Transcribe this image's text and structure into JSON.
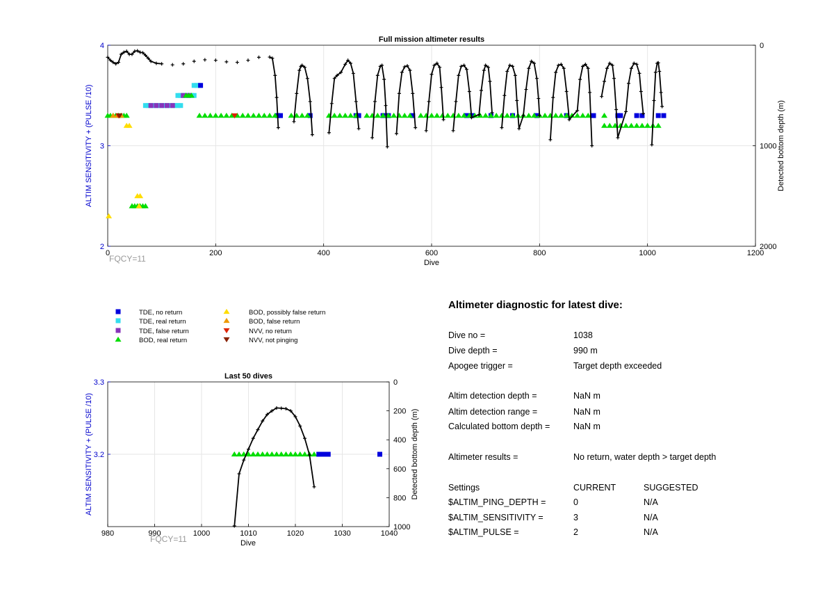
{
  "chart_data": [
    {
      "type": "scatter",
      "title": "Full mission altimeter results",
      "xlabel": "Dive",
      "ylabel_left": "ALTIM SENSITIVITY + (PULSE /10)",
      "ylabel_right": "Detected bottom depth (m)",
      "xlim": [
        0,
        1200
      ],
      "ylim_left": [
        2,
        4
      ],
      "ylim_right": [
        0,
        2000
      ],
      "right_axis_reversed": true,
      "xticks": [
        "0",
        "200",
        "400",
        "600",
        "800",
        "1000",
        "1200"
      ],
      "yticks_left": [
        "2",
        "3",
        "4"
      ],
      "yticks_right": [
        "0",
        "1000",
        "2000"
      ],
      "grid": true,
      "annotation": "FQCY=11",
      "depth_profile": [
        [
          0,
          120
        ],
        [
          5,
          150
        ],
        [
          10,
          170
        ],
        [
          15,
          185
        ],
        [
          20,
          170
        ],
        [
          25,
          90
        ],
        [
          30,
          70
        ],
        [
          35,
          60
        ],
        [
          40,
          90
        ],
        [
          45,
          90
        ],
        [
          50,
          60
        ],
        [
          55,
          55
        ],
        [
          60,
          70
        ],
        [
          65,
          75
        ],
        [
          70,
          100
        ],
        [
          75,
          130
        ],
        [
          80,
          160
        ],
        [
          90,
          180
        ],
        [
          100,
          185
        ],
        [
          120,
          195
        ],
        [
          140,
          185
        ],
        [
          160,
          160
        ],
        [
          180,
          145
        ],
        [
          200,
          150
        ],
        [
          220,
          165
        ],
        [
          240,
          170
        ],
        [
          260,
          150
        ],
        [
          280,
          120
        ],
        [
          300,
          118
        ],
        [
          305,
          130
        ],
        [
          310,
          300
        ],
        [
          313,
          520
        ],
        [
          316,
          820
        ],
        [
          345,
          760
        ],
        [
          350,
          480
        ],
        [
          355,
          250
        ],
        [
          358,
          210
        ],
        [
          360,
          200
        ],
        [
          365,
          220
        ],
        [
          370,
          330
        ],
        [
          375,
          560
        ],
        [
          379,
          890
        ],
        [
          410,
          870
        ],
        [
          415,
          580
        ],
        [
          420,
          330
        ],
        [
          425,
          300
        ],
        [
          432,
          270
        ],
        [
          440,
          190
        ],
        [
          445,
          150
        ],
        [
          450,
          180
        ],
        [
          455,
          280
        ],
        [
          460,
          560
        ],
        [
          465,
          830
        ],
        [
          490,
          920
        ],
        [
          495,
          560
        ],
        [
          500,
          300
        ],
        [
          505,
          210
        ],
        [
          508,
          200
        ],
        [
          512,
          340
        ],
        [
          515,
          600
        ],
        [
          518,
          1010
        ],
        [
          535,
          880
        ],
        [
          540,
          480
        ],
        [
          545,
          270
        ],
        [
          550,
          215
        ],
        [
          555,
          205
        ],
        [
          560,
          250
        ],
        [
          565,
          480
        ],
        [
          570,
          820
        ],
        [
          590,
          850
        ],
        [
          595,
          560
        ],
        [
          600,
          290
        ],
        [
          605,
          200
        ],
        [
          610,
          180
        ],
        [
          615,
          220
        ],
        [
          618,
          420
        ],
        [
          622,
          740
        ],
        [
          640,
          850
        ],
        [
          645,
          560
        ],
        [
          650,
          300
        ],
        [
          655,
          210
        ],
        [
          660,
          200
        ],
        [
          665,
          240
        ],
        [
          670,
          460
        ],
        [
          674,
          720
        ],
        [
          688,
          690
        ],
        [
          692,
          450
        ],
        [
          697,
          250
        ],
        [
          700,
          200
        ],
        [
          705,
          220
        ],
        [
          708,
          360
        ],
        [
          712,
          670
        ],
        [
          730,
          820
        ],
        [
          735,
          500
        ],
        [
          740,
          260
        ],
        [
          745,
          200
        ],
        [
          750,
          210
        ],
        [
          755,
          300
        ],
        [
          758,
          550
        ],
        [
          762,
          830
        ],
        [
          770,
          700
        ],
        [
          775,
          440
        ],
        [
          780,
          230
        ],
        [
          785,
          160
        ],
        [
          790,
          180
        ],
        [
          795,
          330
        ],
        [
          798,
          530
        ],
        [
          800,
          700
        ],
        [
          820,
          940
        ],
        [
          825,
          520
        ],
        [
          830,
          270
        ],
        [
          835,
          200
        ],
        [
          840,
          190
        ],
        [
          845,
          230
        ],
        [
          850,
          460
        ],
        [
          855,
          740
        ],
        [
          870,
          650
        ],
        [
          875,
          340
        ],
        [
          880,
          210
        ],
        [
          885,
          190
        ],
        [
          890,
          230
        ],
        [
          893,
          470
        ],
        [
          897,
          1000
        ],
        [
          915,
          510
        ],
        [
          920,
          360
        ],
        [
          925,
          230
        ],
        [
          930,
          180
        ],
        [
          935,
          200
        ],
        [
          938,
          330
        ],
        [
          942,
          640
        ],
        [
          945,
          920
        ],
        [
          960,
          660
        ],
        [
          965,
          380
        ],
        [
          970,
          230
        ],
        [
          975,
          180
        ],
        [
          980,
          190
        ],
        [
          985,
          280
        ],
        [
          988,
          460
        ],
        [
          992,
          680
        ],
        [
          1008,
          990
        ],
        [
          1012,
          550
        ],
        [
          1015,
          270
        ],
        [
          1018,
          180
        ],
        [
          1020,
          175
        ],
        [
          1022,
          260
        ],
        [
          1025,
          470
        ],
        [
          1027,
          610
        ]
      ],
      "markers": [
        {
          "type": "tde_no_return",
          "y": 3.3,
          "x": [
            315,
            320,
            375,
            460,
            465,
            510,
            520,
            565,
            665,
            675,
            710,
            750,
            795,
            850,
            900,
            945,
            950,
            980,
            990,
            1020,
            1030
          ]
        },
        {
          "type": "tde_real_return",
          "y": 3.4,
          "x": [
            70,
            75,
            80,
            85,
            90,
            95,
            100,
            105,
            110,
            115,
            120,
            125,
            130,
            135
          ]
        },
        {
          "type": "tde_real_return",
          "y": 3.5,
          "x": [
            130,
            135,
            140,
            145,
            150,
            155,
            160
          ]
        },
        {
          "type": "tde_real_return",
          "y": 3.6,
          "x": [
            160,
            165,
            170
          ]
        },
        {
          "type": "tde_no_return",
          "y": 3.6,
          "x": [
            172
          ]
        },
        {
          "type": "tde_false_return",
          "y": 3.4,
          "x": [
            80,
            90,
            100,
            110,
            120
          ]
        },
        {
          "type": "tde_false_return",
          "y": 3.5,
          "x": [
            140,
            150
          ]
        },
        {
          "type": "bod_real_return",
          "y": 3.3,
          "x": [
            0,
            5,
            10,
            15,
            20,
            25,
            30,
            35,
            170,
            180,
            190,
            200,
            210,
            220,
            230,
            240,
            250,
            260,
            270,
            280,
            290,
            300,
            310,
            340,
            350,
            360,
            370,
            410,
            420,
            430,
            440,
            450,
            460,
            480,
            490,
            500,
            510,
            520,
            530,
            540,
            550,
            560,
            580,
            590,
            600,
            610,
            620,
            630,
            640,
            650,
            660,
            670,
            680,
            690,
            700,
            710,
            720,
            730,
            740,
            750,
            760,
            770,
            780,
            790,
            800,
            810,
            820,
            830,
            840,
            850,
            860,
            870,
            880,
            890,
            920
          ]
        },
        {
          "type": "bod_real_return",
          "y": 3.2,
          "x": [
            920,
            930,
            940,
            950,
            960,
            970,
            980,
            990,
            1000,
            1010,
            1020
          ]
        },
        {
          "type": "bod_real_return",
          "y": 3.5,
          "x": [
            145,
            150,
            155
          ]
        },
        {
          "type": "bod_real_return",
          "y": 2.4,
          "x": [
            45,
            50,
            55,
            60,
            65,
            70
          ]
        },
        {
          "type": "bod_possibly_false_return",
          "y": 2.3,
          "x": [
            2
          ]
        },
        {
          "type": "bod_possibly_false_return",
          "y": 3.2,
          "x": [
            35,
            40
          ]
        },
        {
          "type": "bod_possibly_false_return",
          "y": 2.5,
          "x": [
            55,
            60
          ]
        },
        {
          "type": "bod_possibly_false_return",
          "y": 2.4,
          "x": [
            58
          ]
        },
        {
          "type": "bod_false_return",
          "y": 3.3,
          "x": [
            10,
            18,
            25
          ]
        },
        {
          "type": "nvv_no_return",
          "y": 3.3,
          "x": [
            20,
            235
          ]
        },
        {
          "type": "nvv_not_pinging",
          "y": 3.3,
          "x": [
            22
          ]
        }
      ]
    },
    {
      "type": "scatter",
      "title": "Last 50 dives",
      "xlabel": "Dive",
      "ylabel_left": "ALTIM SENSITIVITY + (PULSE /10)",
      "ylabel_right": "Detected bottom depth (m)",
      "xlim": [
        980,
        1040
      ],
      "ylim_left": [
        3.1,
        3.3
      ],
      "ylim_right": [
        0,
        1000
      ],
      "right_axis_reversed": true,
      "xticks": [
        "980",
        "990",
        "1000",
        "1010",
        "1020",
        "1030",
        "1040"
      ],
      "yticks_left": [
        "3.2",
        "3.3"
      ],
      "yticks_right": [
        "0",
        "200",
        "400",
        "600",
        "800",
        "1000"
      ],
      "grid": true,
      "annotation": "FQCY=11",
      "depth_profile": [
        [
          1007,
          995
        ],
        [
          1008,
          635
        ],
        [
          1009,
          540
        ],
        [
          1010,
          465
        ],
        [
          1011,
          390
        ],
        [
          1012,
          330
        ],
        [
          1013,
          270
        ],
        [
          1014,
          225
        ],
        [
          1015,
          200
        ],
        [
          1016,
          180
        ],
        [
          1017,
          182
        ],
        [
          1018,
          185
        ],
        [
          1019,
          200
        ],
        [
          1020,
          240
        ],
        [
          1021,
          305
        ],
        [
          1022,
          390
        ],
        [
          1023,
          505
        ],
        [
          1024,
          725
        ]
      ],
      "markers": [
        {
          "type": "bod_real_return",
          "y": 3.2,
          "x": [
            1007,
            1008,
            1009,
            1010,
            1011,
            1012,
            1013,
            1014,
            1015,
            1016,
            1017,
            1018,
            1019,
            1020,
            1021,
            1022,
            1023,
            1024
          ]
        },
        {
          "type": "tde_no_return",
          "y": 3.2,
          "x": [
            1025,
            1026,
            1027,
            1038
          ]
        }
      ]
    }
  ],
  "legend": [
    {
      "key": "tde_no_return",
      "label": "TDE, no return",
      "shape": "square",
      "color": "#0000dd"
    },
    {
      "key": "tde_real_return",
      "label": "TDE, real return",
      "shape": "square",
      "color": "#33ddee"
    },
    {
      "key": "tde_false_return",
      "label": "TDE, false return",
      "shape": "square",
      "color": "#8833bb"
    },
    {
      "key": "bod_real_return",
      "label": "BOD, real return",
      "shape": "triangle-up",
      "color": "#00dd00"
    },
    {
      "key": "bod_possibly_false_return",
      "label": "BOD, possibly false return",
      "shape": "triangle-up",
      "color": "#ffdd00"
    },
    {
      "key": "bod_false_return",
      "label": "BOD, false return",
      "shape": "triangle-up",
      "color": "#ee9900"
    },
    {
      "key": "nvv_no_return",
      "label": "NVV, no return",
      "shape": "triangle-down",
      "color": "#dd2200"
    },
    {
      "key": "nvv_not_pinging",
      "label": "NVV, not pinging",
      "shape": "triangle-down",
      "color": "#882200"
    }
  ],
  "colors": {
    "axis_label": "#0000cc",
    "depth_line": "#000000",
    "annotation": "#999999",
    "grid": "#e6e6e6"
  },
  "diagnostic": {
    "title": "Altimeter diagnostic for latest dive:",
    "rows": [
      {
        "label": "Dive no =",
        "value": "1038"
      },
      {
        "label": "Dive depth =",
        "value": "990 m"
      },
      {
        "label": "Apogee trigger =",
        "value": "Target depth exceeded"
      },
      {
        "label": "Altim detection depth =",
        "value": "NaN m"
      },
      {
        "label": "Altim detection range =",
        "value": "NaN m"
      },
      {
        "label": "Calculated bottom depth =",
        "value": "NaN m"
      },
      {
        "label": "Altimeter results =",
        "value": "No return, water depth > target depth"
      }
    ],
    "settings_header": {
      "label": "Settings",
      "current": "CURRENT",
      "suggested": "SUGGESTED"
    },
    "settings": [
      {
        "label": "$ALTIM_PING_DEPTH =",
        "current": "0",
        "suggested": "N/A"
      },
      {
        "label": "$ALTIM_SENSITIVITY =",
        "current": "3",
        "suggested": "N/A"
      },
      {
        "label": "$ALTIM_PULSE =",
        "current": "2",
        "suggested": "N/A"
      }
    ]
  }
}
